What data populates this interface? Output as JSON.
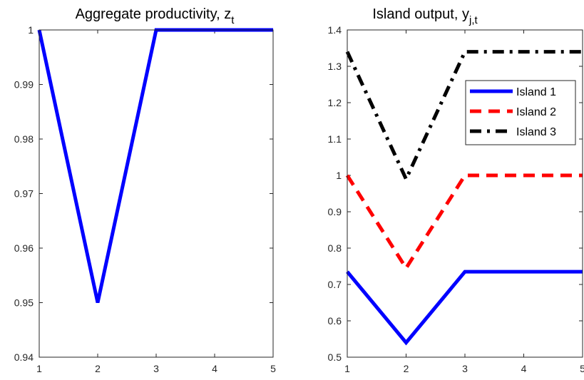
{
  "chart_data": [
    {
      "type": "line",
      "title": "Aggregate productivity, z",
      "title_subscript": "t",
      "x": [
        1,
        2,
        3,
        4,
        5
      ],
      "xlim": [
        1,
        5
      ],
      "ylim": [
        0.94,
        1.0
      ],
      "xticks": [
        "1",
        "2",
        "3",
        "4",
        "5"
      ],
      "yticks": [
        "0.94",
        "0.95",
        "0.96",
        "0.97",
        "0.98",
        "0.99",
        "1"
      ],
      "grid": false,
      "series": [
        {
          "values": [
            1.0,
            0.95,
            1.0,
            1.0,
            1.0
          ],
          "color": "#0000ff",
          "dash": "solid"
        }
      ]
    },
    {
      "type": "line",
      "title": "Island output, y",
      "title_subscript": "j,t",
      "x": [
        1,
        2,
        3,
        4,
        5
      ],
      "xlim": [
        1,
        5
      ],
      "ylim": [
        0.5,
        1.4
      ],
      "xticks": [
        "1",
        "2",
        "3",
        "4",
        "5"
      ],
      "yticks": [
        "0.5",
        "0.6",
        "0.7",
        "0.8",
        "0.9",
        "1",
        "1.1",
        "1.2",
        "1.3",
        "1.4"
      ],
      "grid": false,
      "legend_position": "top-right",
      "series": [
        {
          "name": "Island 1",
          "values": [
            0.735,
            0.54,
            0.735,
            0.735,
            0.735
          ],
          "color": "#0000ff",
          "dash": "solid"
        },
        {
          "name": "Island 2",
          "values": [
            1.0,
            0.745,
            1.0,
            1.0,
            1.0
          ],
          "color": "#ff0000",
          "dash": "dash"
        },
        {
          "name": "Island 3",
          "values": [
            1.34,
            0.99,
            1.34,
            1.34,
            1.34
          ],
          "color": "#000000",
          "dash": "dashdot"
        }
      ]
    }
  ]
}
